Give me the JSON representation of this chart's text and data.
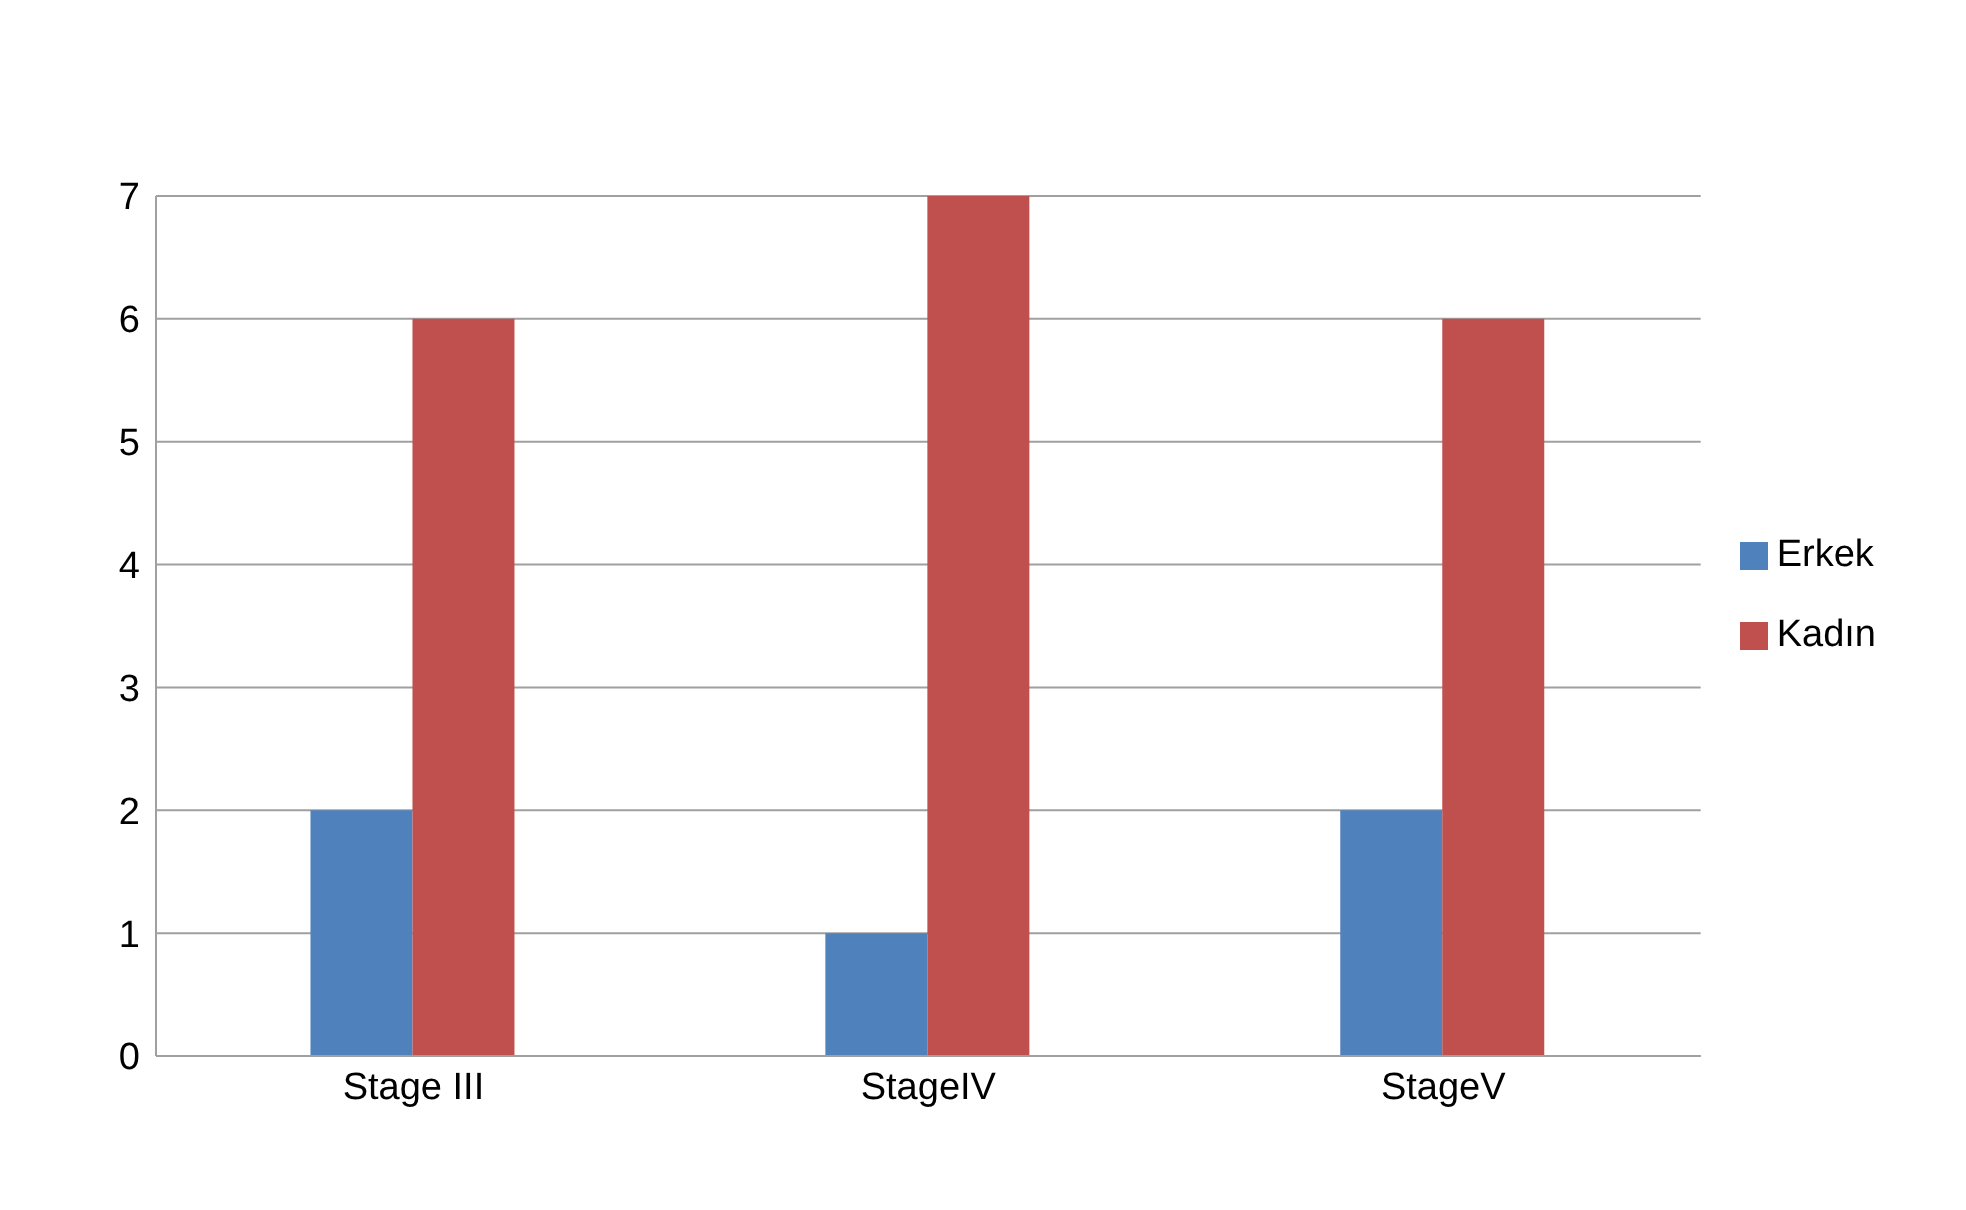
{
  "chart_data": {
    "type": "bar",
    "categories": [
      "Stage III",
      "StageIV",
      "StageV"
    ],
    "series": [
      {
        "name": "Erkek",
        "color": "#4f81bd",
        "values": [
          2,
          1,
          2
        ]
      },
      {
        "name": "Kadın",
        "color": "#c0504d",
        "values": [
          6,
          7,
          6
        ]
      }
    ],
    "ylim": [
      0,
      7
    ],
    "yticks": [
      0,
      1,
      2,
      3,
      4,
      5,
      6,
      7
    ],
    "grid": "y",
    "legend": "right"
  }
}
